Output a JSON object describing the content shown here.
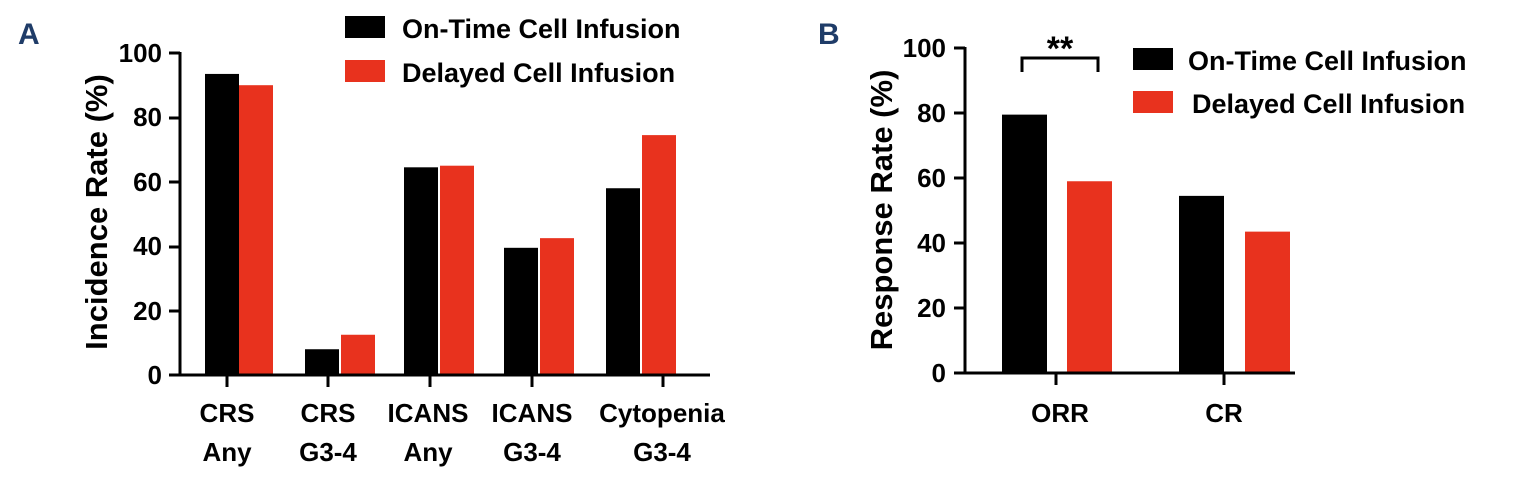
{
  "colors": {
    "on_time": "#000000",
    "delayed": "#e8321e",
    "panel_letter": "#1f3c68"
  },
  "chart_data": [
    {
      "panel": "A",
      "type": "bar",
      "ylabel": "Incidence Rate (%)",
      "xlabel": "",
      "ylim": [
        0,
        100
      ],
      "yticks": [
        "0",
        "20",
        "40",
        "60",
        "80",
        "100"
      ],
      "categories": [
        {
          "line1": "CRS",
          "line2": "Any"
        },
        {
          "line1": "CRS",
          "line2": "G3-4"
        },
        {
          "line1": "ICANS",
          "line2": "Any"
        },
        {
          "line1": "ICANS",
          "line2": "G3-4"
        },
        {
          "line1": "Cytopenia",
          "line2": "G3-4"
        }
      ],
      "series": [
        {
          "name": "On-Time Cell Infusion",
          "color": "#000000",
          "values": [
            93.5,
            8,
            64.5,
            39.5,
            58
          ]
        },
        {
          "name": "Delayed Cell Infusion",
          "color": "#e8321e",
          "values": [
            90,
            12.5,
            65,
            42.5,
            74.5
          ]
        }
      ],
      "legend": "top-right"
    },
    {
      "panel": "B",
      "type": "bar",
      "ylabel": "Response Rate (%)",
      "xlabel": "",
      "ylim": [
        0,
        100
      ],
      "yticks": [
        "0",
        "20",
        "40",
        "60",
        "80",
        "100"
      ],
      "categories": [
        {
          "line1": "ORR",
          "line2": ""
        },
        {
          "line1": "CR",
          "line2": ""
        }
      ],
      "series": [
        {
          "name": "On-Time Cell Infusion",
          "color": "#000000",
          "values": [
            79.5,
            54.5
          ]
        },
        {
          "name": "Delayed Cell Infusion",
          "color": "#e8321e",
          "values": [
            59,
            43.5
          ]
        }
      ],
      "annotation": {
        "text": "**",
        "category": "ORR"
      },
      "legend": "top-right"
    }
  ]
}
